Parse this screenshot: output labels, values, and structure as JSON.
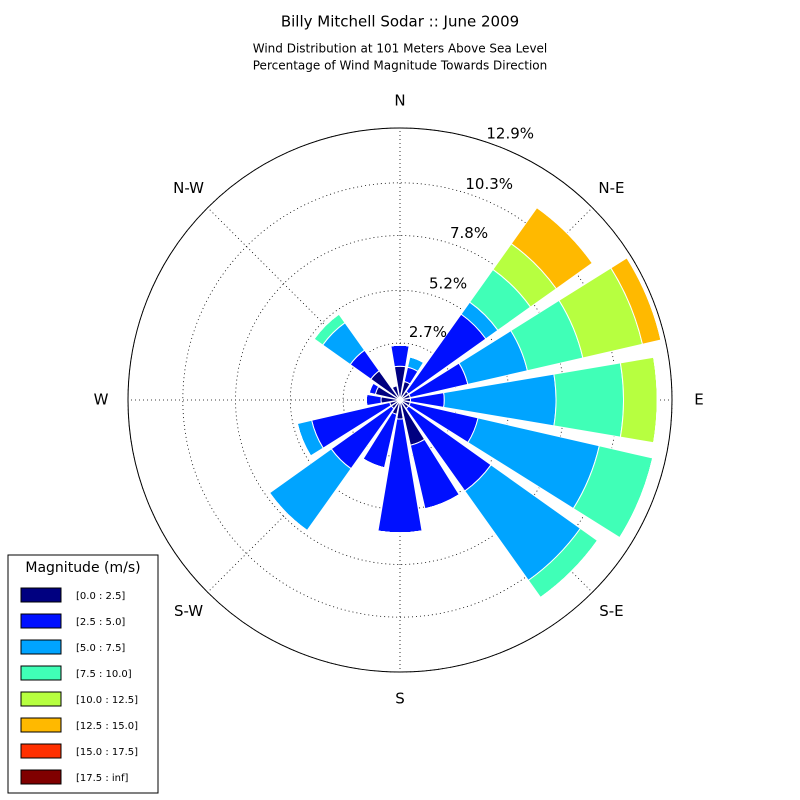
{
  "chart_data": {
    "type": "windrose",
    "title": "Billy Mitchell Sodar :: June 2009",
    "subtitle": [
      "Wind Distribution at 101 Meters Above Sea Level",
      "Percentage of Wind Magnitude Towards Direction"
    ],
    "categories": [
      "N",
      null,
      "N-E",
      null,
      "E",
      null,
      "S-E",
      null,
      "S",
      null,
      "S-W",
      null,
      "W",
      null,
      "N-W",
      null
    ],
    "rlim": [
      0,
      12.9
    ],
    "rticks": [
      {
        "value": 2.7,
        "label": "2.7%"
      },
      {
        "value": 5.2,
        "label": "5.2%"
      },
      {
        "value": 7.8,
        "label": "7.8%"
      },
      {
        "value": 10.3,
        "label": "10.3%"
      },
      {
        "value": 12.9,
        "label": "12.9%"
      }
    ],
    "grid": true,
    "legend_title": "Magnitude (m/s)",
    "legend_position": "lower left",
    "series": [
      {
        "name": "[0.0 : 2.5]",
        "color": "#000080",
        "values": [
          1.6,
          0.9,
          0.5,
          0.5,
          0.5,
          0.5,
          0.5,
          2.2,
          0.9,
          0.7,
          0.5,
          0.5,
          0.9,
          1.2,
          1.7,
          0.7
        ]
      },
      {
        "name": "[2.5 : 5.0]",
        "color": "#0010ff",
        "values": [
          1.0,
          0.7,
          4.5,
          2.8,
          1.6,
          3.3,
          4.8,
          3.1,
          5.4,
          2.6,
          3.5,
          3.8,
          0.7,
          0.3,
          1.2,
          0
        ]
      },
      {
        "name": "[5.0 : 7.5]",
        "color": "#00a4ff",
        "values": [
          0,
          0.5,
          0.7,
          2.9,
          5.3,
          5.9,
          5.2,
          0,
          0,
          0,
          3.6,
          0.7,
          0,
          0,
          1.6,
          0
        ]
      },
      {
        "name": "[7.5 : 10.0]",
        "color": "#40ffb7",
        "values": [
          0,
          0,
          1.9,
          2.7,
          3.2,
          2.6,
          1.0,
          0,
          0,
          0,
          0,
          0,
          0,
          0,
          0.5,
          0
        ]
      },
      {
        "name": "[10.0 : 12.5]",
        "color": "#b7ff40",
        "values": [
          0,
          0,
          1.5,
          2.9,
          1.6,
          0,
          0,
          0,
          0,
          0,
          0,
          0,
          0,
          0,
          0,
          0
        ]
      },
      {
        "name": "[12.5 : 15.0]",
        "color": "#ffb900",
        "values": [
          0,
          0,
          2.1,
          0.9,
          0,
          0,
          0,
          0,
          0,
          0,
          0,
          0,
          0,
          0,
          0,
          0
        ]
      },
      {
        "name": "[15.0 : 17.5]",
        "color": "#ff3000",
        "values": [
          0,
          0,
          0,
          0,
          0,
          0,
          0,
          0,
          0,
          0,
          0,
          0,
          0,
          0,
          0,
          0
        ]
      },
      {
        "name": "[17.5 : inf]",
        "color": "#800000",
        "values": [
          0,
          0,
          0,
          0,
          0,
          0,
          0,
          0,
          0,
          0,
          0,
          0,
          0,
          0,
          0,
          0
        ]
      }
    ]
  }
}
